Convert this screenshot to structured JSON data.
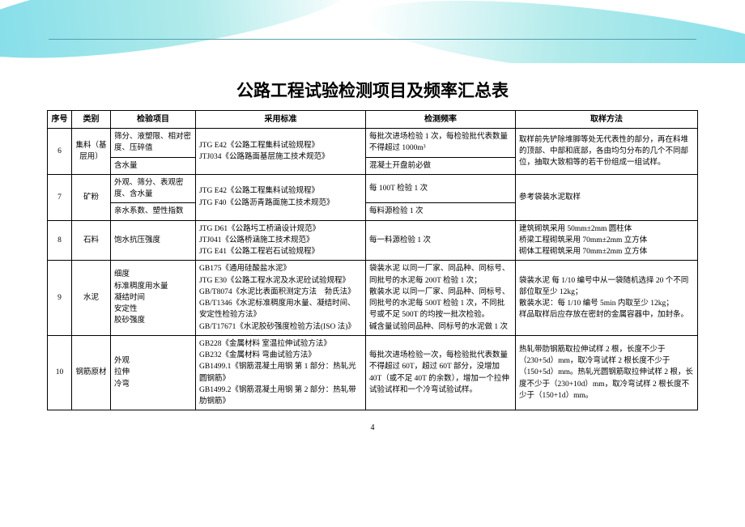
{
  "title": "公路工程试验检测项目及频率汇总表",
  "page_number": "4",
  "headers": {
    "idx": "序号",
    "category": "类别",
    "item": "检验项目",
    "standard": "采用标准",
    "frequency": "检测频率",
    "sampling": "取样方法"
  },
  "rows": {
    "r6": {
      "idx": "6",
      "category": "集料（基层用）",
      "item_a": "筛分、液塑限、相对密度、压碎值",
      "item_b": "含水量",
      "standard": "JTG E42《公路工程集料试验规程》\nJTJ034《公路路面基层施工技术规范》",
      "freq_a": "每批次进场检验 1 次，每检验批代表数量不得超过 1000m³",
      "freq_b": "混凝土开盘前必做",
      "sampling": "取样前先铲除堆脚等处无代表性的部分，再在料堆的顶部、中部和底部，各由均匀分布的几个不同部位，抽取大致相等的若干份组成一组试样。"
    },
    "r7": {
      "idx": "7",
      "category": "矿粉",
      "item_a": "外观、筛分、表观密度、含水量",
      "item_b": "亲水系数、塑性指数",
      "standard": "JTG E42《公路工程集料试验规程》\nJTG F40《公路沥青路面施工技术规范》",
      "freq_a": "每 100T 检验 1 次",
      "freq_b": "每料源检验 1 次",
      "sampling": "参考袋装水泥取样"
    },
    "r8": {
      "idx": "8",
      "category": "石料",
      "item": "饱水抗压强度",
      "standard": "JTG D61《公路圬工桥涵设计规范》\nJTJ041《公路桥涵施工技术规范》\nJTG E41《公路工程岩石试验规程》",
      "frequency": "每一料源检验 1 次",
      "sampling": "建筑砌筑采用 50mm±2mm 圆柱体\n桥梁工程砌筑采用 70mm±2mm 立方体\n砌体工程砌筑采用 70mm±2mm 立方体"
    },
    "r9": {
      "idx": "9",
      "category": "水泥",
      "item": "细度\n标准稠度用水量\n凝结时间\n安定性\n胶砂强度",
      "standard": "GB175《通用硅酸盐水泥》\nJTG E30《公路工程水泥及水泥砼试验规程》\nGB/T8074《水泥比表面积测定方法　勃氏法》\nGB/T1346《水泥标准稠度用水量、凝结时间、安定性检验方法》\nGB/T17671《水泥胶砂强度检验方法(ISO 法)》",
      "frequency": "袋装水泥  以同一厂家、同品种、同标号、同批号的水泥每 200T 检验 1 次；\n散装水泥  以同一厂家、同品种、同标号、同批号的水泥每 500T 检验 1 次，不同批号或不足 500T 的均按一批次检验。\n碱含量试验同品种、同标号的水泥做 1 次",
      "sampling": "袋装水泥  每 1/10 编号中从一袋随机选择 20 个不同部位取至少 12kg；\n散装水泥：每 1/10 编号 5min 内取至少 12kg；\n样品取样后应存放在密封的金属容器中，加封条。"
    },
    "r10": {
      "idx": "10",
      "category": "钢筋原材",
      "item": "外观\n拉伸\n冷弯",
      "standard": "GB228《金属材料  室温拉伸试验方法》\nGB232《金属材料  弯曲试验方法》\nGB1499.1《钢筋混凝土用钢 第 1 部分：热轧光圆钢筋》\nGB1499.2《钢筋混凝土用钢 第 2 部分：热轧带肋钢筋》",
      "frequency": "每批次进场检验一次，每检验批代表数量不得超过 60T，超过 60T 部分，没增加 40T（或不足 40T 的余数），增加一个拉伸试验试样和一个冷弯试验试样。",
      "sampling": "热轧带肋钢筋取拉伸试样 2 根，长度不少于（230+5d）mm，取冷弯试样 2 根长度不少于（150+5d）mm。热轧光圆钢筋取拉伸试样 2 根，长度不少于（230+10d）mm，取冷弯试样 2 根长度不少于（150+1d）mm。"
    }
  }
}
